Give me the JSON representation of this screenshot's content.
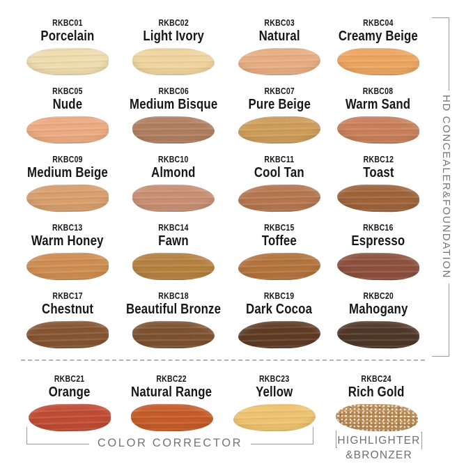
{
  "side_group": {
    "label": "HD CONCEALER&FOUNDATION"
  },
  "bottom_groups": {
    "corrector_label": "COLOR CORRECTOR",
    "highlighter_label_line1": "HIGHLIGHTER",
    "highlighter_label_line2": "&BRONZER"
  },
  "ui_colors": {
    "background": "#ffffff",
    "label_text": "#171717",
    "group_text_gray": "#757575",
    "bracket_line_gray": "#9a9a9a",
    "dashed_line_gray": "#b3b3b3"
  },
  "swatches": [
    {
      "code": "RKBC01",
      "name": "Porcelain",
      "color": "#EFDCAE"
    },
    {
      "code": "RKBC02",
      "name": "Light Ivory",
      "color": "#EFD49E"
    },
    {
      "code": "RKBC03",
      "name": "Natural",
      "color": "#E7AD82"
    },
    {
      "code": "RKBC04",
      "name": "Creamy Beige",
      "color": "#ECA55F"
    },
    {
      "code": "RKBC05",
      "name": "Nude",
      "color": "#ECAA80"
    },
    {
      "code": "RKBC06",
      "name": "Medium Bisque",
      "color": "#B07E5F"
    },
    {
      "code": "RKBC07",
      "name": "Pure Beige",
      "color": "#CD9C59"
    },
    {
      "code": "RKBC08",
      "name": "Warm Sand",
      "color": "#C87F5A"
    },
    {
      "code": "RKBC09",
      "name": "Medium Beige",
      "color": "#D89E6C"
    },
    {
      "code": "RKBC10",
      "name": "Almond",
      "color": "#C88F73"
    },
    {
      "code": "RKBC11",
      "name": "Cool Tan",
      "color": "#B5764F"
    },
    {
      "code": "RKBC12",
      "name": "Toast",
      "color": "#9E6339"
    },
    {
      "code": "RKBC13",
      "name": "Warm Honey",
      "color": "#CE8D50"
    },
    {
      "code": "RKBC14",
      "name": "Fawn",
      "color": "#B5813F"
    },
    {
      "code": "RKBC15",
      "name": "Toffee",
      "color": "#B3733D"
    },
    {
      "code": "RKBC16",
      "name": "Espresso",
      "color": "#8D503D"
    },
    {
      "code": "RKBC17",
      "name": "Chestnut",
      "color": "#865431"
    },
    {
      "code": "RKBC18",
      "name": "Beautiful Bronze",
      "color": "#7D5230"
    },
    {
      "code": "RKBC19",
      "name": "Dark Cocoa",
      "color": "#5F3B24"
    },
    {
      "code": "RKBC20",
      "name": "Mahogany",
      "color": "#4F3727"
    },
    {
      "code": "RKBC21",
      "name": "Orange",
      "color": "#C04B33"
    },
    {
      "code": "RKBC22",
      "name": "Natural Range",
      "color": "#C55B27"
    },
    {
      "code": "RKBC23",
      "name": "Yellow",
      "color": "#EEC36E"
    },
    {
      "code": "RKBC24",
      "name": "Rich Gold",
      "color": "#B8864C"
    }
  ]
}
